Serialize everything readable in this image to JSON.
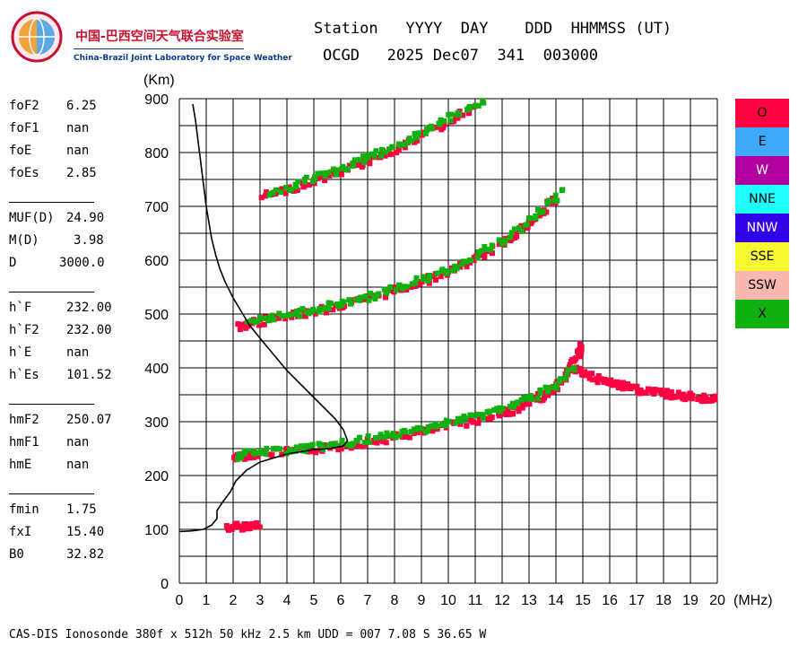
{
  "logo": {
    "name_cn": "中国-巴西空间天气联合实验室",
    "name_en": "China-Brazil Joint Laboratory for Space Weather"
  },
  "header": {
    "line1": "Station   YYYY  DAY    DDD  HHMMSS (UT)",
    "line2": "OCGD   2025 Dec07  341  003000"
  },
  "params": [
    {
      "label": "foF2",
      "value": "6.25"
    },
    {
      "label": "foF1",
      "value": "nan"
    },
    {
      "label": "foE",
      "value": "nan"
    },
    {
      "label": "foEs",
      "value": "2.85"
    },
    {
      "label": "MUF(D)",
      "value": "24.90"
    },
    {
      "label": "M(D)",
      "value": "3.98"
    },
    {
      "label": "D",
      "value": "3000.0"
    },
    {
      "label": "h`F",
      "value": "232.00"
    },
    {
      "label": "h`F2",
      "value": "232.00"
    },
    {
      "label": "h`E",
      "value": "nan"
    },
    {
      "label": "h`Es",
      "value": "101.52"
    },
    {
      "label": "hmF2",
      "value": "250.07"
    },
    {
      "label": "hmF1",
      "value": "nan"
    },
    {
      "label": "hmE",
      "value": "nan"
    },
    {
      "label": "fmin",
      "value": "1.75"
    },
    {
      "label": "fxI",
      "value": "15.40"
    },
    {
      "label": "B0",
      "value": "32.82"
    }
  ],
  "legend": [
    {
      "label": "O",
      "color": "#ff0040"
    },
    {
      "label": "E",
      "color": "#40a8f8"
    },
    {
      "label": "W",
      "color": "#b000a0"
    },
    {
      "label": "NNE",
      "color": "#20ffff"
    },
    {
      "label": "NNW",
      "color": "#3000e8"
    },
    {
      "label": "SSE",
      "color": "#f8f830"
    },
    {
      "label": "SSW",
      "color": "#f8b8b0"
    },
    {
      "label": "X",
      "color": "#10b010"
    }
  ],
  "footer": "CAS-DIS Ionosonde 380f x 512h 50 kHz 2.5 km UDD = 007 7.08 S 36.65 W",
  "chart_data": {
    "type": "scatter",
    "title": "",
    "xlabel": "(MHz)",
    "ylabel": "(Km)",
    "xlim": [
      0,
      20
    ],
    "ylim": [
      0,
      900
    ],
    "xticks": [
      "0",
      "1",
      "2",
      "3",
      "4",
      "5",
      "6",
      "7",
      "8",
      "9",
      "10",
      "11",
      "12",
      "13",
      "14",
      "15",
      "16",
      "17",
      "18",
      "19",
      "20"
    ],
    "yticks": [
      "0",
      "100",
      "200",
      "300",
      "400",
      "500",
      "600",
      "700",
      "800",
      "900"
    ],
    "grid": true,
    "legend_position": "right",
    "series": [
      {
        "name": "O",
        "color": "#ff0040",
        "traces": [
          {
            "x": [
              1.8,
              2.2,
              2.6,
              3.0
            ],
            "y": [
              103,
              105,
              107,
              106
            ]
          },
          {
            "x": [
              2.0,
              2.5,
              3.0,
              4.0,
              5.0,
              6.0,
              7.0,
              8.0,
              9.0,
              10.0,
              11.0,
              12.0,
              12.5,
              13.0,
              13.5,
              14.0,
              14.3,
              14.6,
              14.8,
              15.0
            ],
            "y": [
              233,
              238,
              241,
              244,
              248,
              254,
              262,
              270,
              280,
              292,
              302,
              315,
              322,
              335,
              348,
              362,
              380,
              405,
              425,
              445
            ]
          },
          {
            "x": [
              2.2,
              3.0,
              4.0,
              5.0,
              6.0,
              7.0,
              8.0,
              9.0,
              10.0,
              11.0,
              12.0,
              12.5,
              13.0,
              13.5,
              14.0
            ],
            "y": [
              476,
              485,
              495,
              505,
              515,
              528,
              543,
              560,
              578,
              600,
              630,
              650,
              668,
              690,
              715
            ]
          },
          {
            "x": [
              3.1,
              4.0,
              5.0,
              6.0,
              7.0,
              8.0,
              9.0,
              10.0,
              11.0
            ],
            "y": [
              718,
              730,
              746,
              765,
              784,
              805,
              830,
              856,
              884
            ]
          },
          {
            "x": [
              14.6,
              15.0,
              15.5,
              16.0,
              16.5,
              17.0,
              17.5,
              18.0,
              18.5,
              19.0,
              19.5,
              20.0
            ],
            "y": [
              400,
              390,
              380,
              372,
              366,
              360,
              356,
              352,
              348,
              346,
              344,
              342
            ]
          }
        ]
      },
      {
        "name": "X",
        "color": "#10b010",
        "traces": [
          {
            "x": [
              2.2,
              3.0,
              4.0,
              5.0,
              6.0,
              7.0,
              8.0,
              9.0,
              10.0,
              11.0,
              12.0,
              13.0,
              14.0,
              14.7
            ],
            "y": [
              236,
              244,
              247,
              252,
              258,
              266,
              275,
              286,
              298,
              310,
              324,
              342,
              368,
              400
            ]
          },
          {
            "x": [
              2.6,
              3.5,
              4.5,
              5.5,
              6.5,
              7.5,
              8.5,
              9.5,
              10.5,
              11.5,
              12.5,
              13.5,
              14.3
            ],
            "y": [
              482,
              492,
              503,
              513,
              525,
              538,
              554,
              572,
              595,
              622,
              652,
              692,
              732
            ]
          },
          {
            "x": [
              3.3,
              4.5,
              5.5,
              6.5,
              7.5,
              8.5,
              9.5,
              10.5,
              11.5
            ],
            "y": [
              724,
              742,
              760,
              778,
              800,
              824,
              848,
              874,
              900
            ]
          }
        ]
      },
      {
        "name": "virtual-height-profile",
        "color": "#000000",
        "traces": [
          {
            "x": [
              0.5,
              0.6,
              0.7,
              0.8,
              0.9,
              1.0,
              1.1,
              1.2,
              1.35,
              1.5,
              1.7,
              2.0,
              2.3,
              2.6,
              3.0,
              3.5,
              4.0,
              4.5,
              5.0,
              5.5,
              5.8,
              6.1,
              6.25,
              6.1,
              5.6,
              5.0,
              4.0,
              3.0,
              2.5,
              2.1,
              1.9,
              1.6,
              1.4,
              1.4,
              1.2,
              0.9,
              0.6,
              0.4,
              0.0
            ],
            "y": [
              890,
              860,
              820,
              780,
              740,
              700,
              670,
              640,
              610,
              585,
              560,
              530,
              505,
              480,
              455,
              425,
              395,
              370,
              345,
              320,
              305,
              285,
              265,
              255,
              250,
              248,
              240,
              225,
              210,
              190,
              170,
              150,
              135,
              120,
              108,
              100,
              98,
              97,
              96
            ]
          }
        ]
      }
    ]
  }
}
